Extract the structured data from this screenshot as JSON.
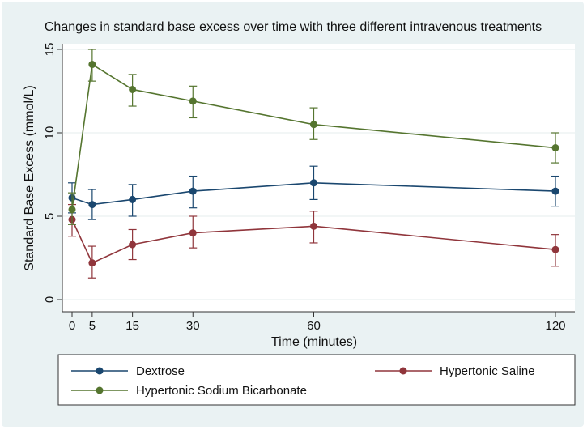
{
  "chart_data": {
    "type": "line",
    "title": "Changes in standard base excess over time with three different intravenous treatments",
    "xlabel": "Time (minutes)",
    "ylabel": "Standard Base Excess (mmol/L)",
    "x": [
      0,
      5,
      15,
      30,
      60,
      120
    ],
    "x_ticks": [
      "0",
      "5",
      "15",
      "30",
      "60",
      "120"
    ],
    "y_ticks": [
      "0",
      "5",
      "10",
      "15"
    ],
    "xlim": [
      0,
      120
    ],
    "ylim": [
      0,
      15
    ],
    "grid": "horizontal",
    "legend_position": "bottom",
    "series": [
      {
        "name": "Dextrose",
        "color": "#1a476f",
        "values": [
          6.1,
          5.7,
          6.0,
          6.5,
          7.0,
          6.5
        ],
        "lower": [
          5.2,
          4.8,
          5.0,
          5.5,
          6.0,
          5.6
        ],
        "upper": [
          7.0,
          6.6,
          6.9,
          7.4,
          8.0,
          7.4
        ]
      },
      {
        "name": "Hypertonic Saline",
        "color": "#90353b",
        "values": [
          4.8,
          2.2,
          3.3,
          4.0,
          4.4,
          3.0
        ],
        "lower": [
          3.8,
          1.3,
          2.4,
          3.1,
          3.4,
          2.0
        ],
        "upper": [
          5.7,
          3.2,
          4.2,
          5.0,
          5.3,
          3.9
        ]
      },
      {
        "name": "Hypertonic Sodium Bicarbonate",
        "color": "#55752f",
        "values": [
          5.4,
          14.1,
          12.6,
          11.9,
          10.5,
          9.1
        ],
        "lower": [
          4.5,
          13.1,
          11.6,
          10.9,
          9.6,
          8.2
        ],
        "upper": [
          6.4,
          15.0,
          13.5,
          12.8,
          11.5,
          10.0
        ]
      }
    ]
  }
}
